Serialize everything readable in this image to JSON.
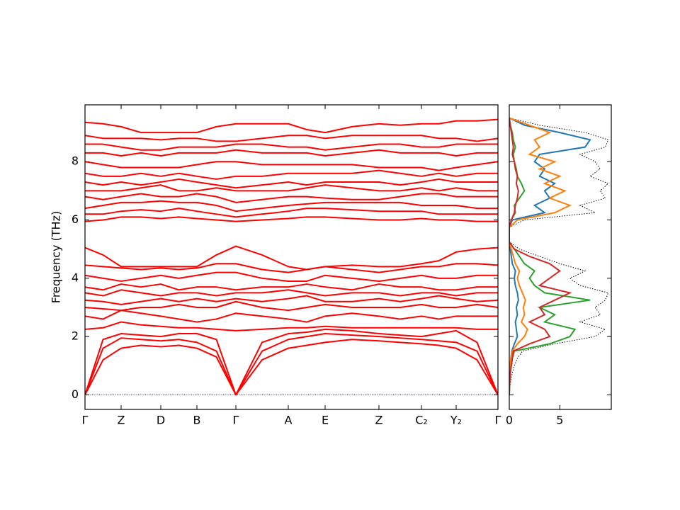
{
  "chart_data": [
    {
      "type": "line",
      "ylabel": "Frequency (THz)",
      "x": [
        0,
        0.255,
        0.51,
        0.79,
        1.07,
        1.325,
        1.58,
        1.855,
        2.13,
        2.5,
        2.87,
        3.13,
        3.39,
        3.77,
        4.15,
        4.45,
        4.75,
        4.995,
        5.24,
        5.535,
        5.83
      ],
      "xlim": [
        0,
        5.83
      ],
      "xticks": [
        {
          "value": 0,
          "label": "Γ"
        },
        {
          "value": 0.51,
          "label": "Z"
        },
        {
          "value": 1.07,
          "label": "D"
        },
        {
          "value": 1.58,
          "label": "B"
        },
        {
          "value": 2.13,
          "label": "Γ"
        },
        {
          "value": 2.87,
          "label": "A"
        },
        {
          "value": 3.39,
          "label": "E"
        },
        {
          "value": 4.15,
          "label": "Z"
        },
        {
          "value": 4.75,
          "label": "C₂"
        },
        {
          "value": 5.24,
          "label": "Y₂"
        },
        {
          "value": 5.83,
          "label": "Γ"
        }
      ],
      "ylim": [
        -0.5,
        9.95
      ],
      "yticks": [
        0,
        2,
        4,
        6,
        8
      ],
      "color": "#ff0000",
      "zero_line_color": "#0000ff",
      "series": [
        {
          "values": [
            0,
            1.2,
            1.6,
            1.7,
            1.65,
            1.7,
            1.6,
            1.3,
            0,
            1.2,
            1.6,
            1.7,
            1.8,
            1.9,
            1.85,
            1.8,
            1.75,
            1.7,
            1.6,
            1.2,
            0
          ]
        },
        {
          "values": [
            0,
            1.6,
            1.95,
            1.9,
            1.85,
            1.9,
            1.8,
            1.5,
            0,
            1.5,
            1.9,
            2.0,
            2.1,
            2.05,
            2.0,
            1.95,
            1.9,
            1.85,
            1.8,
            1.5,
            0
          ]
        },
        {
          "values": [
            0,
            1.9,
            2.1,
            2.05,
            2.0,
            2.1,
            2.1,
            1.9,
            0,
            1.8,
            2.1,
            2.15,
            2.25,
            2.2,
            2.1,
            2.05,
            2.0,
            2.1,
            2.2,
            1.8,
            0
          ]
        },
        {
          "values": [
            2.25,
            2.3,
            2.5,
            2.4,
            2.35,
            2.3,
            2.3,
            2.25,
            2.2,
            2.25,
            2.3,
            2.3,
            2.35,
            2.3,
            2.3,
            2.3,
            2.3,
            2.3,
            2.3,
            2.25,
            2.25
          ]
        },
        {
          "values": [
            2.7,
            2.6,
            2.9,
            2.8,
            2.7,
            2.6,
            2.5,
            2.6,
            2.8,
            2.7,
            2.6,
            2.5,
            2.7,
            2.8,
            2.7,
            2.6,
            2.7,
            2.6,
            2.7,
            2.7,
            2.7
          ]
        },
        {
          "values": [
            3.0,
            2.95,
            2.9,
            3.0,
            3.0,
            3.1,
            3.0,
            3.0,
            3.2,
            3.0,
            2.9,
            3.0,
            3.1,
            3.0,
            3.0,
            3.0,
            3.1,
            3.0,
            3.0,
            3.1,
            3.0
          ]
        },
        {
          "values": [
            3.25,
            3.2,
            3.1,
            3.2,
            3.3,
            3.2,
            3.3,
            3.2,
            3.3,
            3.2,
            3.3,
            3.4,
            3.2,
            3.2,
            3.3,
            3.2,
            3.3,
            3.4,
            3.3,
            3.2,
            3.25
          ]
        },
        {
          "values": [
            3.5,
            3.4,
            3.6,
            3.5,
            3.4,
            3.5,
            3.5,
            3.4,
            3.5,
            3.5,
            3.6,
            3.5,
            3.4,
            3.5,
            3.5,
            3.4,
            3.5,
            3.5,
            3.4,
            3.5,
            3.5
          ]
        },
        {
          "values": [
            3.7,
            3.6,
            3.8,
            3.7,
            3.8,
            3.6,
            3.7,
            3.7,
            3.6,
            3.7,
            3.7,
            3.8,
            3.7,
            3.6,
            3.8,
            3.7,
            3.7,
            3.6,
            3.6,
            3.7,
            3.7
          ]
        },
        {
          "values": [
            4.1,
            4.0,
            3.9,
            4.0,
            4.1,
            4.0,
            4.1,
            4.2,
            4.2,
            4.0,
            3.9,
            3.9,
            4.1,
            4.0,
            3.9,
            4.0,
            4.1,
            4.0,
            4.0,
            4.1,
            4.1
          ]
        },
        {
          "values": [
            4.45,
            4.4,
            4.35,
            4.3,
            4.35,
            4.3,
            4.35,
            4.5,
            4.5,
            4.3,
            4.2,
            4.3,
            4.4,
            4.3,
            4.2,
            4.3,
            4.4,
            4.4,
            4.5,
            4.5,
            4.45
          ]
        },
        {
          "values": [
            5.05,
            4.8,
            4.4,
            4.4,
            4.4,
            4.4,
            4.4,
            4.8,
            5.1,
            4.8,
            4.4,
            4.3,
            4.4,
            4.45,
            4.4,
            4.4,
            4.5,
            4.6,
            4.9,
            5.0,
            5.05
          ]
        },
        {
          "values": [
            5.95,
            6.0,
            6.1,
            6.1,
            6.05,
            6.1,
            6.05,
            6.0,
            5.95,
            6.0,
            6.05,
            6.1,
            6.1,
            6.05,
            6.0,
            6.0,
            6.05,
            6.0,
            6.0,
            5.95,
            5.95
          ]
        },
        {
          "values": [
            6.2,
            6.2,
            6.3,
            6.35,
            6.3,
            6.4,
            6.3,
            6.2,
            6.1,
            6.2,
            6.3,
            6.4,
            6.4,
            6.35,
            6.3,
            6.3,
            6.3,
            6.2,
            6.2,
            6.2,
            6.2
          ]
        },
        {
          "values": [
            6.4,
            6.5,
            6.6,
            6.6,
            6.65,
            6.6,
            6.6,
            6.5,
            6.3,
            6.4,
            6.5,
            6.55,
            6.6,
            6.6,
            6.6,
            6.6,
            6.5,
            6.5,
            6.5,
            6.4,
            6.4
          ]
        },
        {
          "values": [
            6.8,
            6.7,
            6.8,
            6.9,
            6.8,
            6.8,
            6.9,
            6.8,
            6.6,
            6.7,
            6.8,
            6.8,
            6.75,
            6.7,
            6.7,
            6.8,
            6.9,
            6.9,
            6.8,
            6.8,
            6.8
          ]
        },
        {
          "values": [
            7.0,
            7.0,
            7.0,
            7.1,
            7.2,
            7.0,
            7.0,
            7.1,
            7.0,
            7.0,
            7.0,
            7.1,
            7.2,
            7.1,
            7.0,
            7.0,
            7.1,
            7.0,
            7.1,
            7.0,
            7.0
          ]
        },
        {
          "values": [
            7.3,
            7.2,
            7.3,
            7.2,
            7.3,
            7.4,
            7.3,
            7.2,
            7.1,
            7.2,
            7.3,
            7.2,
            7.3,
            7.3,
            7.3,
            7.2,
            7.3,
            7.4,
            7.3,
            7.3,
            7.3
          ]
        },
        {
          "values": [
            7.6,
            7.5,
            7.5,
            7.6,
            7.5,
            7.6,
            7.5,
            7.4,
            7.5,
            7.5,
            7.6,
            7.6,
            7.6,
            7.6,
            7.7,
            7.6,
            7.5,
            7.6,
            7.5,
            7.6,
            7.6
          ]
        },
        {
          "values": [
            8.0,
            7.9,
            7.8,
            7.8,
            7.8,
            7.8,
            7.9,
            8.0,
            8.0,
            7.9,
            7.9,
            7.9,
            7.9,
            7.9,
            7.8,
            7.8,
            7.8,
            7.7,
            7.8,
            7.9,
            8.0
          ]
        },
        {
          "values": [
            8.3,
            8.3,
            8.2,
            8.3,
            8.2,
            8.3,
            8.3,
            8.3,
            8.4,
            8.3,
            8.3,
            8.3,
            8.2,
            8.3,
            8.4,
            8.3,
            8.3,
            8.3,
            8.2,
            8.3,
            8.3
          ]
        },
        {
          "values": [
            8.6,
            8.6,
            8.5,
            8.4,
            8.4,
            8.5,
            8.5,
            8.5,
            8.6,
            8.6,
            8.5,
            8.5,
            8.4,
            8.5,
            8.6,
            8.6,
            8.5,
            8.5,
            8.6,
            8.6,
            8.6
          ]
        },
        {
          "values": [
            8.9,
            8.8,
            8.8,
            8.8,
            8.75,
            8.8,
            8.8,
            8.7,
            8.7,
            8.8,
            8.9,
            8.9,
            8.8,
            8.9,
            8.9,
            8.9,
            8.9,
            8.8,
            8.8,
            8.7,
            8.8
          ]
        },
        {
          "values": [
            9.35,
            9.3,
            9.2,
            9.0,
            9.0,
            9.0,
            9.0,
            9.2,
            9.3,
            9.3,
            9.3,
            9.1,
            9.0,
            9.2,
            9.3,
            9.25,
            9.3,
            9.3,
            9.4,
            9.4,
            9.45
          ]
        }
      ]
    },
    {
      "type": "line",
      "orientation": "horizontal",
      "y": [
        0,
        0.25,
        0.5,
        0.75,
        1,
        1.25,
        1.5,
        1.75,
        2,
        2.25,
        2.5,
        2.75,
        3,
        3.25,
        3.5,
        3.75,
        4,
        4.25,
        4.5,
        4.75,
        5,
        5.25,
        5.5,
        5.75,
        6,
        6.25,
        6.5,
        6.75,
        7,
        7.25,
        7.5,
        7.75,
        8,
        8.25,
        8.5,
        8.75,
        9,
        9.25,
        9.5
      ],
      "xlim": [
        0,
        10.1
      ],
      "xticks": [
        0,
        5
      ],
      "ylim": [
        -0.5,
        9.95
      ],
      "yticks": [
        0,
        2,
        4,
        6,
        8
      ],
      "series": [
        {
          "color": "#000000",
          "dash": true,
          "values": [
            0,
            0.05,
            0.15,
            0.3,
            0.5,
            0.8,
            1.3,
            4.5,
            8.5,
            9.5,
            7,
            9,
            8.5,
            9.5,
            9.8,
            7,
            6,
            7.5,
            5,
            3,
            1,
            0,
            0,
            0,
            1.5,
            8.5,
            7,
            9.5,
            9,
            9.8,
            8,
            9,
            8.5,
            7,
            9.5,
            9.8,
            7.5,
            3,
            0
          ]
        },
        {
          "color": "#1f77b4",
          "dash": false,
          "values": [
            0,
            0.01,
            0.03,
            0.06,
            0.1,
            0.15,
            0.25,
            0.5,
            0.8,
            0.7,
            0.6,
            0.8,
            0.7,
            0.9,
            0.8,
            0.6,
            0.5,
            0.6,
            0.3,
            0.2,
            0.1,
            0,
            0,
            0,
            0.3,
            3.5,
            2.5,
            4,
            3.5,
            4.5,
            3,
            3.5,
            2.5,
            3,
            7.5,
            8,
            5,
            1.5,
            0
          ]
        },
        {
          "color": "#ff7f0e",
          "dash": false,
          "values": [
            0,
            0.01,
            0.03,
            0.06,
            0.1,
            0.15,
            0.3,
            0.8,
            1.5,
            1.8,
            1.2,
            1.5,
            1.4,
            1.6,
            1.3,
            1.0,
            0.8,
            1.0,
            0.6,
            0.4,
            0.2,
            0,
            0,
            0,
            0.8,
            4.5,
            6,
            4,
            5.5,
            3.5,
            5,
            3,
            4.5,
            2,
            3,
            2.5,
            4,
            2,
            0
          ]
        },
        {
          "color": "#2ca02c",
          "dash": false,
          "values": [
            0,
            0.02,
            0.05,
            0.1,
            0.2,
            0.3,
            0.5,
            4,
            6,
            6.5,
            3.5,
            4.5,
            3,
            8,
            3.5,
            2.5,
            2,
            2.5,
            1.5,
            1,
            0.5,
            0,
            0,
            0,
            0.2,
            0.6,
            0.5,
            1,
            1.5,
            1.2,
            0.8,
            0.7,
            0.5,
            0.4,
            0.6,
            0.4,
            0.3,
            0.1,
            0
          ]
        },
        {
          "color": "#d62728",
          "dash": false,
          "values": [
            0,
            0.02,
            0.05,
            0.1,
            0.2,
            0.3,
            0.4,
            2,
            4,
            3.5,
            2,
            3.5,
            3,
            4.5,
            6,
            3,
            4,
            5,
            4,
            2,
            0.5,
            0,
            0,
            0,
            0.2,
            0.5,
            0.6,
            0.8,
            0.9,
            0.7,
            0.8,
            0.6,
            0.5,
            0.3,
            0.4,
            0.3,
            0.2,
            0.1,
            0
          ]
        }
      ]
    }
  ]
}
